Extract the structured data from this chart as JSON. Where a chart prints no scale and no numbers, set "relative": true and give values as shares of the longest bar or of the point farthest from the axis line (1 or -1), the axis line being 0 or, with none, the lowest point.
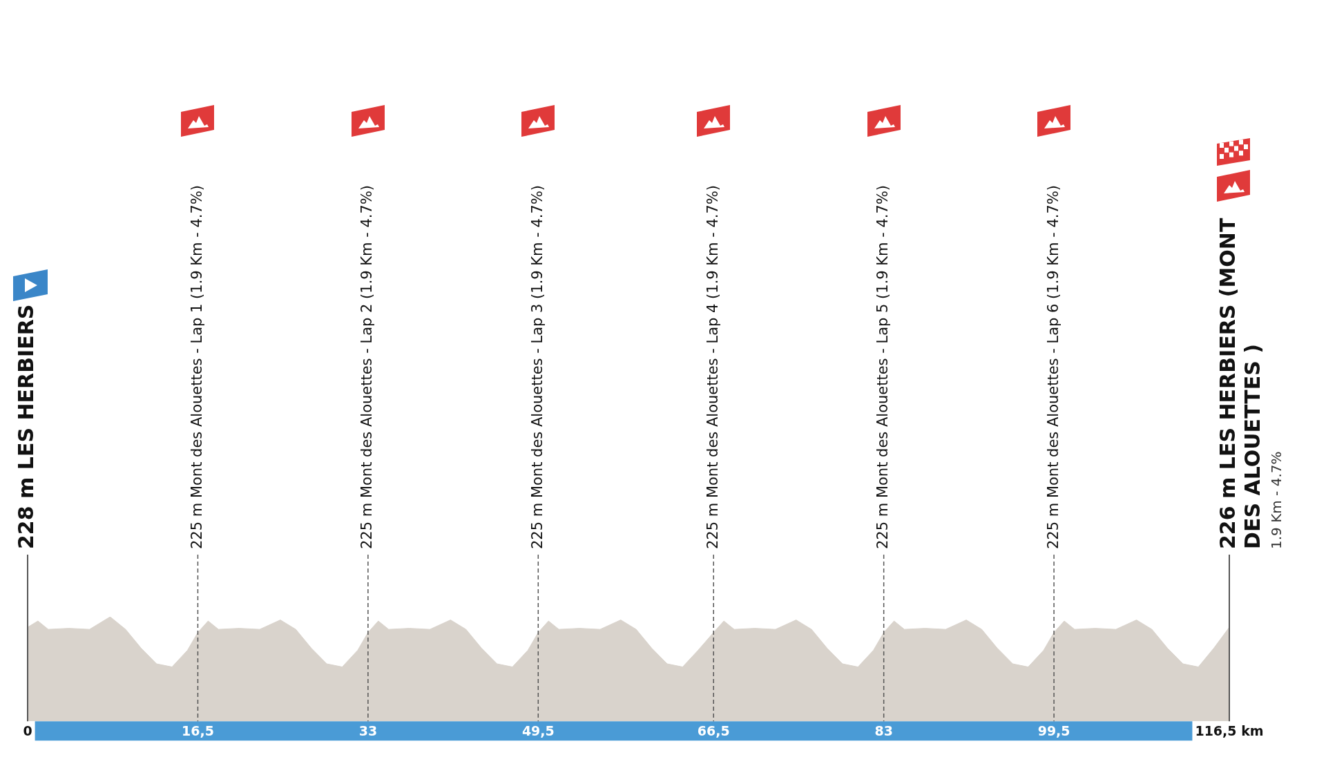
{
  "chart_data": {
    "type": "area",
    "relative": true,
    "color": "#d9d3cc",
    "xlim": [
      0,
      116.5
    ],
    "xticks": [
      0,
      {
        "value": 16.5,
        "label": "16,5"
      },
      33,
      {
        "value": 49.5,
        "label": "49,5"
      },
      {
        "value": 66.5,
        "label": "66,5"
      },
      83,
      {
        "value": 99.5,
        "label": "99,5"
      },
      {
        "value": 116.5,
        "label": "116,5 km"
      }
    ],
    "x": [
      0,
      1,
      2,
      4,
      6,
      8,
      9.5,
      11,
      12.5,
      14,
      15.5,
      16.5,
      17.5,
      18.5,
      20.5,
      22.5,
      24.5,
      26,
      27.5,
      29,
      30.5,
      32,
      33,
      34,
      35,
      37,
      39,
      41,
      42.5,
      44,
      45.5,
      47,
      48.5,
      49.5,
      50.5,
      51.5,
      53.5,
      55.5,
      57.5,
      59,
      60.5,
      62,
      63.5,
      65,
      66.5,
      67.5,
      68.5,
      70.5,
      72.5,
      74.5,
      76,
      77.5,
      79,
      80.5,
      82,
      83,
      84,
      85,
      87,
      89,
      91,
      92.5,
      94,
      95.5,
      97,
      98.5,
      99.5,
      100.5,
      101.5,
      103.5,
      105.5,
      107.5,
      109,
      110.5,
      112,
      113.5,
      115,
      116.5
    ],
    "values": [
      0.9,
      0.96,
      0.88,
      0.89,
      0.88,
      1,
      0.88,
      0.7,
      0.55,
      0.52,
      0.68,
      0.85,
      0.96,
      0.88,
      0.89,
      0.88,
      0.97,
      0.88,
      0.7,
      0.55,
      0.52,
      0.68,
      0.85,
      0.96,
      0.88,
      0.89,
      0.88,
      0.97,
      0.88,
      0.7,
      0.55,
      0.52,
      0.68,
      0.85,
      0.96,
      0.88,
      0.89,
      0.88,
      0.97,
      0.88,
      0.7,
      0.55,
      0.52,
      0.68,
      0.85,
      0.96,
      0.88,
      0.89,
      0.88,
      0.97,
      0.88,
      0.7,
      0.55,
      0.52,
      0.68,
      0.85,
      0.96,
      0.88,
      0.89,
      0.88,
      0.97,
      0.88,
      0.7,
      0.55,
      0.52,
      0.68,
      0.85,
      0.96,
      0.88,
      0.89,
      0.88,
      0.97,
      0.88,
      0.7,
      0.55,
      0.52,
      0.7,
      0.9
    ],
    "ref_lines": [
      {
        "axis": "x",
        "value": 0,
        "label": "228 m LES HERBIERS",
        "line_style": "solid"
      },
      {
        "axis": "x",
        "value": 16.5,
        "label": "225 m Mont des Alouettes - Lap 1 (1.9 Km - 4.7%)",
        "line_style": "dashed"
      },
      {
        "axis": "x",
        "value": 33,
        "label": "225 m Mont des Alouettes - Lap 2 (1.9 Km - 4.7%)",
        "line_style": "dashed"
      },
      {
        "axis": "x",
        "value": 49.5,
        "label": "225 m Mont des Alouettes - Lap 3 (1.9 Km - 4.7%)",
        "line_style": "dashed"
      },
      {
        "axis": "x",
        "value": 66.5,
        "label": "225 m Mont des Alouettes - Lap 4 (1.9 Km - 4.7%)",
        "line_style": "dashed"
      },
      {
        "axis": "x",
        "value": 83,
        "label": "225 m Mont des Alouettes - Lap 5 (1.9 Km - 4.7%)",
        "line_style": "dashed"
      },
      {
        "axis": "x",
        "value": 99.5,
        "label": "225 m Mont des Alouettes - Lap 6 (1.9 Km - 4.7%)",
        "line_style": "dashed"
      },
      {
        "axis": "x",
        "value": 116.5,
        "label": "226 m LES HERBIERS (MONT DES ALOUETTES )",
        "line_style": "solid"
      }
    ],
    "annotations": [
      "1.9 Km - 4.7%"
    ]
  }
}
